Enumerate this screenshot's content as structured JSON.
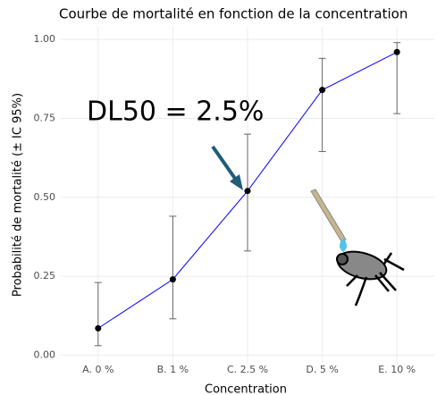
{
  "chart_data": {
    "type": "line",
    "title": "Courbe de mortalité en fonction de la concentration",
    "x_label": "Concentration",
    "y_label": "Probabilité de mortalité (± IC 95%)",
    "annotation": "DL50 = 2.5%",
    "categories": [
      "A. 0 %",
      "B. 1 %",
      "C. 2.5 %",
      "D. 5 %",
      "E. 10 %"
    ],
    "series": [
      {
        "color": "#0000ff",
        "point_color": "#000000",
        "error_color": "#666666",
        "values": [
          0.085,
          0.24,
          0.52,
          0.84,
          0.96
        ],
        "lower": [
          0.03,
          0.115,
          0.33,
          0.645,
          0.765
        ],
        "upper": [
          0.23,
          0.44,
          0.7,
          0.94,
          0.99
        ]
      }
    ],
    "ylim": [
      -0.03,
      1.04
    ],
    "yticks": [
      {
        "value": 0,
        "label": "0.00"
      },
      {
        "value": 0.25,
        "label": "0.25"
      },
      {
        "value": 0.5,
        "label": "0.50"
      },
      {
        "value": 0.75,
        "label": "0.75"
      },
      {
        "value": 1,
        "label": "1.00"
      }
    ],
    "grid": true
  }
}
